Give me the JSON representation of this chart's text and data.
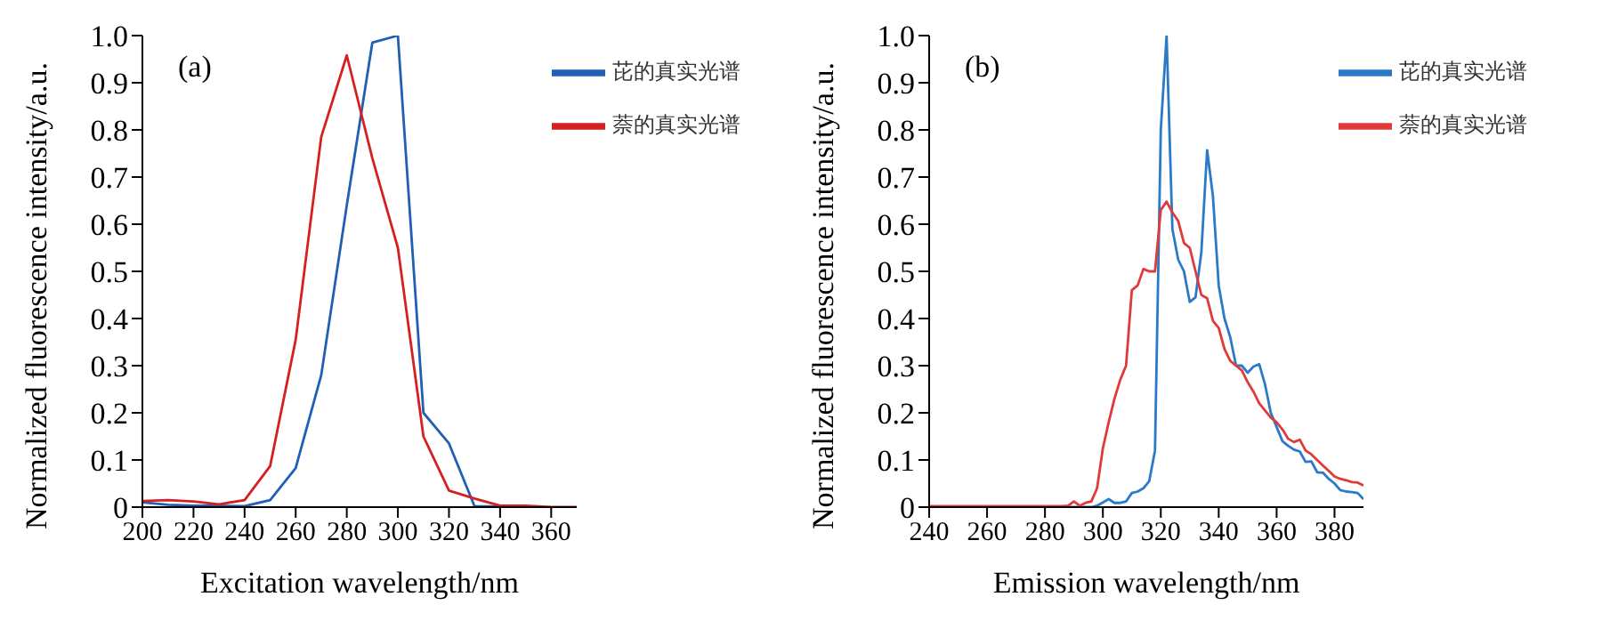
{
  "chart_data": [
    {
      "type": "line",
      "xlabel": "Excitation wavelength/nm",
      "ylabel": "Normalized fluorescence intensity/a.u.",
      "annotations": [
        "(a)"
      ],
      "x": [
        200,
        210,
        220,
        230,
        240,
        250,
        260,
        270,
        280,
        290,
        300,
        310,
        320,
        330,
        340,
        350,
        360,
        370
      ],
      "series": [
        {
          "name": "芘的真实光谱",
          "color": "#1f5fb4",
          "values": [
            0.01,
            0.005,
            0.003,
            0.003,
            0.002,
            0.015,
            0.083,
            0.28,
            0.64,
            0.985,
            1.0,
            0.2,
            0.135,
            0.002,
            0.001,
            0,
            null,
            null
          ]
        },
        {
          "name": "萘的真实光谱",
          "color": "#d42020",
          "values": [
            0.013,
            0.015,
            0.012,
            0.006,
            0.015,
            0.087,
            0.355,
            0.785,
            0.958,
            0.74,
            0.55,
            0.15,
            0.035,
            0.018,
            0.003,
            0.003,
            0,
            0
          ]
        }
      ],
      "xlim": [
        200,
        370
      ],
      "xticks": [
        200,
        220,
        240,
        260,
        280,
        300,
        320,
        340,
        360
      ],
      "ylim": [
        0,
        1
      ],
      "yticks": [
        0,
        0.1,
        0.2,
        0.3,
        0.4,
        0.5,
        0.6,
        0.7,
        0.8,
        0.9,
        {
          "value": 1,
          "label": "1.0"
        }
      ],
      "grid": false,
      "legend": "top right",
      "marker": "none",
      "line_style": "solid"
    },
    {
      "type": "line",
      "xlabel": "Emission wavelength/nm",
      "ylabel": "Normalized fluorescence intensity/a.u.",
      "annotations": [
        "(b)"
      ],
      "x": [
        240,
        260,
        280,
        286,
        288,
        290,
        292,
        294,
        296,
        298,
        300,
        302,
        304,
        306,
        308,
        310,
        312,
        314,
        316,
        318,
        320,
        322,
        324,
        326,
        328,
        330,
        332,
        334,
        336,
        338,
        340,
        342,
        344,
        346,
        348,
        350,
        352,
        354,
        356,
        358,
        360,
        362,
        364,
        366,
        368,
        370,
        372,
        374,
        376,
        378,
        380,
        382,
        384,
        386,
        388,
        390
      ],
      "series": [
        {
          "name": "芘的真实光谱",
          "color": "#2a7ac8",
          "values": [
            null,
            null,
            null,
            0,
            0,
            0,
            0,
            0,
            0,
            0.003,
            0.01,
            0.017,
            0.009,
            0.009,
            0.012,
            0.03,
            0.033,
            0.04,
            0.055,
            0.12,
            0.8,
            1.0,
            0.59,
            0.525,
            0.5,
            0.435,
            0.445,
            0.54,
            0.757,
            0.66,
            0.47,
            0.4,
            0.36,
            0.3,
            0.3,
            0.285,
            0.298,
            0.303,
            0.26,
            0.2,
            0.17,
            0.14,
            0.13,
            0.122,
            0.118,
            0.096,
            0.097,
            0.074,
            0.073,
            0.06,
            0.05,
            0.036,
            0.033,
            0.032,
            0.03,
            0.017
          ]
        },
        {
          "name": "萘的真实光谱",
          "color": "#e03a3a",
          "values": [
            0.002,
            0.002,
            0.002,
            0.002,
            0.003,
            0.012,
            0.003,
            0.009,
            0.012,
            0.04,
            0.125,
            0.18,
            0.23,
            0.27,
            0.3,
            0.46,
            0.47,
            0.505,
            0.5,
            0.5,
            0.63,
            0.648,
            0.625,
            0.607,
            0.56,
            0.55,
            0.5,
            0.45,
            0.443,
            0.395,
            0.38,
            0.335,
            0.31,
            0.3,
            0.29,
            0.265,
            0.245,
            0.22,
            0.205,
            0.19,
            0.18,
            0.165,
            0.145,
            0.138,
            0.143,
            0.12,
            0.112,
            0.1,
            0.088,
            0.077,
            0.065,
            0.06,
            0.057,
            0.053,
            0.052,
            0.046
          ]
        }
      ],
      "xlim": [
        240,
        390
      ],
      "xticks": [
        240,
        260,
        280,
        300,
        320,
        340,
        360,
        380
      ],
      "ylim": [
        0,
        1
      ],
      "yticks": [
        0,
        0.1,
        0.2,
        0.3,
        0.4,
        0.5,
        0.6,
        0.7,
        0.8,
        0.9,
        {
          "value": 1,
          "label": "1.0"
        }
      ],
      "grid": false,
      "legend": "top right",
      "marker": "none",
      "line_style": "solid"
    }
  ]
}
